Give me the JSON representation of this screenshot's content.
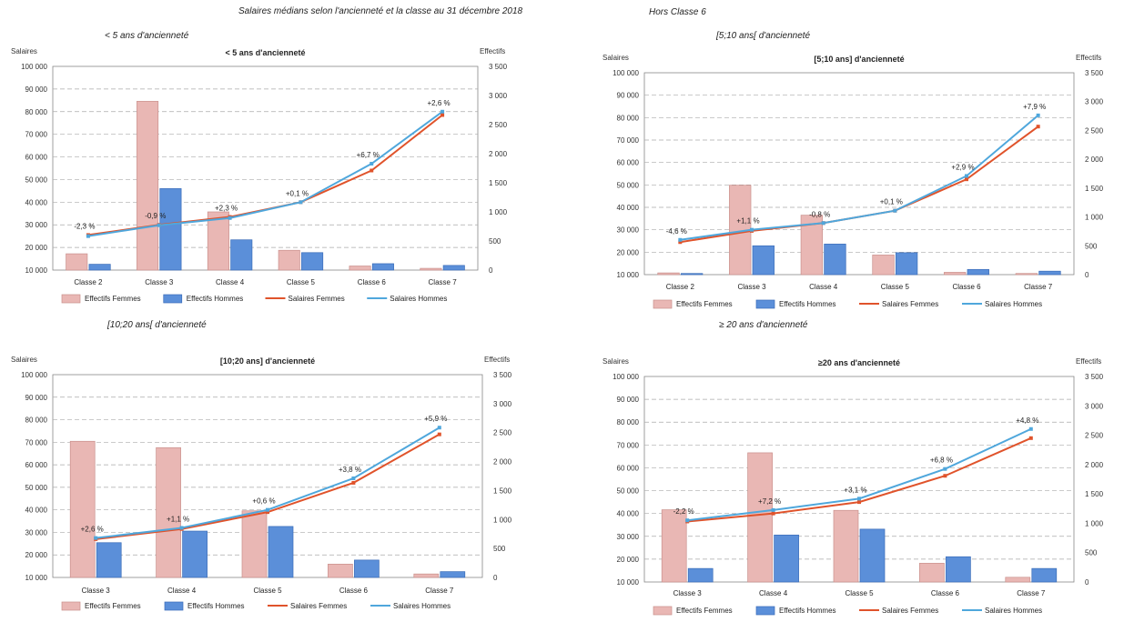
{
  "page": {
    "title": "Salaires médians selon l'ancienneté et la classe au 31 décembre 2018",
    "note": "Hors Classe 6",
    "captions": [
      "< 5 ans d'ancienneté",
      "[5;10 ans[ d'ancienneté",
      "[10;20 ans[ d'ancienneté",
      "≥ 20 ans d'ancienneté"
    ]
  },
  "colors": {
    "bar_femmes": "#e9b7b4",
    "bar_femmes_stroke": "#c98f8b",
    "bar_hommes": "#5b8fd9",
    "bar_hommes_stroke": "#3a6cb8",
    "line_femmes": "#e0532b",
    "line_hommes": "#4fa7dc",
    "grid": "#aaaaaa"
  },
  "chart_data": [
    {
      "type": "bar",
      "title": "< 5 ans d'ancienneté",
      "ylabel": "Salaires",
      "y2label": "Effectifs",
      "ylim": [
        10000,
        100000
      ],
      "y2lim": [
        0,
        3500
      ],
      "yticks": [
        "10 000",
        "20 000",
        "30 000",
        "40 000",
        "50 000",
        "60 000",
        "70 000",
        "80 000",
        "90 000",
        "100 000"
      ],
      "y2ticks": [
        "0",
        "500",
        "1 000",
        "1 500",
        "2 000",
        "2 500",
        "3 000",
        "3 500"
      ],
      "categories": [
        "Classe 2",
        "Classe 3",
        "Classe 4",
        "Classe 5",
        "Classe 6",
        "Classe 7"
      ],
      "series": [
        {
          "name": "Effectifs Femmes",
          "kind": "bar",
          "axis": "right",
          "values": [
            280,
            2900,
            1000,
            340,
            70,
            30
          ]
        },
        {
          "name": "Effectifs Hommes",
          "kind": "bar",
          "axis": "right",
          "values": [
            100,
            1400,
            520,
            300,
            110,
            80
          ]
        },
        {
          "name": "Salaires Femmes",
          "kind": "line",
          "axis": "left",
          "values": [
            25500,
            30000,
            33500,
            40000,
            54000,
            78500
          ]
        },
        {
          "name": "Salaires Hommes",
          "kind": "line",
          "axis": "left",
          "values": [
            25000,
            29800,
            33000,
            40000,
            57000,
            80000
          ]
        }
      ],
      "annotations": [
        "-2,3 %",
        "-0,9 %",
        "+2,3 %",
        "+0,1 %",
        "+6,7 %",
        "+2,6 %"
      ]
    },
    {
      "type": "bar",
      "title": "[5;10 ans] d'ancienneté",
      "ylabel": "Salaires",
      "y2label": "Effectifs",
      "ylim": [
        10000,
        100000
      ],
      "y2lim": [
        0,
        3500
      ],
      "yticks": [
        "10 000",
        "20 000",
        "30 000",
        "40 000",
        "50 000",
        "60 000",
        "70 000",
        "80 000",
        "90 000",
        "100 000"
      ],
      "y2ticks": [
        "0",
        "500",
        "1 000",
        "1 500",
        "2 000",
        "2 500",
        "3 000",
        "3 500"
      ],
      "categories": [
        "Classe 2",
        "Classe 3",
        "Classe 4",
        "Classe 5",
        "Classe 6",
        "Classe 7"
      ],
      "series": [
        {
          "name": "Effectifs Femmes",
          "kind": "bar",
          "axis": "right",
          "values": [
            30,
            1550,
            1030,
            340,
            40,
            20
          ]
        },
        {
          "name": "Effectifs Hommes",
          "kind": "bar",
          "axis": "right",
          "values": [
            20,
            500,
            530,
            380,
            90,
            60
          ]
        },
        {
          "name": "Salaires Femmes",
          "kind": "line",
          "axis": "left",
          "values": [
            24500,
            29500,
            33000,
            38500,
            52500,
            76000
          ]
        },
        {
          "name": "Salaires Hommes",
          "kind": "line",
          "axis": "left",
          "values": [
            25500,
            30000,
            33000,
            38500,
            54000,
            81000
          ]
        }
      ],
      "annotations": [
        "-4,6 %",
        "+1,1 %",
        "-0,8 %",
        "+0,1 %",
        "+2,9 %",
        "+7,9 %"
      ]
    },
    {
      "type": "bar",
      "title": "[10;20 ans] d'ancienneté",
      "ylabel": "Salaires",
      "y2label": "Effectifs",
      "ylim": [
        10000,
        100000
      ],
      "y2lim": [
        0,
        3500
      ],
      "yticks": [
        "10 000",
        "20 000",
        "30 000",
        "40 000",
        "50 000",
        "60 000",
        "70 000",
        "80 000",
        "90 000",
        "100 000"
      ],
      "y2ticks": [
        "0",
        "500",
        "1 000",
        "1 500",
        "2 000",
        "2 500",
        "3 000",
        "3 500"
      ],
      "categories": [
        "Classe 3",
        "Classe 4",
        "Classe 5",
        "Classe 6",
        "Classe 7"
      ],
      "series": [
        {
          "name": "Effectifs Femmes",
          "kind": "bar",
          "axis": "right",
          "values": [
            2350,
            2240,
            1150,
            230,
            60
          ]
        },
        {
          "name": "Effectifs Hommes",
          "kind": "bar",
          "axis": "right",
          "values": [
            600,
            800,
            880,
            300,
            100
          ]
        },
        {
          "name": "Salaires Femmes",
          "kind": "line",
          "axis": "left",
          "values": [
            27000,
            31500,
            39000,
            52000,
            73500
          ]
        },
        {
          "name": "Salaires Hommes",
          "kind": "line",
          "axis": "left",
          "values": [
            27500,
            32000,
            40000,
            54000,
            76500
          ]
        }
      ],
      "annotations": [
        "+2,6 %",
        "+1,1 %",
        "+0,6 %",
        "+3,8 %",
        "+5,9 %"
      ]
    },
    {
      "type": "bar",
      "title": "≥20 ans d'ancienneté",
      "ylabel": "Salaires",
      "y2label": "Effectifs",
      "ylim": [
        10000,
        100000
      ],
      "y2lim": [
        0,
        3500
      ],
      "yticks": [
        "10 000",
        "20 000",
        "30 000",
        "40 000",
        "50 000",
        "60 000",
        "70 000",
        "80 000",
        "90 000",
        "100 000"
      ],
      "y2ticks": [
        "0",
        "500",
        "1 000",
        "1 500",
        "2 000",
        "2 500",
        "3 000",
        "3 500"
      ],
      "categories": [
        "Classe 3",
        "Classe 4",
        "Classe 5",
        "Classe 6",
        "Classe 7"
      ],
      "series": [
        {
          "name": "Effectifs Femmes",
          "kind": "bar",
          "axis": "right",
          "values": [
            1230,
            2200,
            1220,
            320,
            80
          ]
        },
        {
          "name": "Effectifs Hommes",
          "kind": "bar",
          "axis": "right",
          "values": [
            230,
            800,
            900,
            430,
            230
          ]
        },
        {
          "name": "Salaires Femmes",
          "kind": "line",
          "axis": "left",
          "values": [
            36500,
            40000,
            45000,
            56500,
            73000
          ]
        },
        {
          "name": "Salaires Hommes",
          "kind": "line",
          "axis": "left",
          "values": [
            37000,
            41500,
            46500,
            59500,
            77000
          ]
        }
      ],
      "annotations": [
        "-2,2 %",
        "+7,2 %",
        "+3,1 %",
        "+6,8 %",
        "+4,8 %"
      ]
    }
  ]
}
